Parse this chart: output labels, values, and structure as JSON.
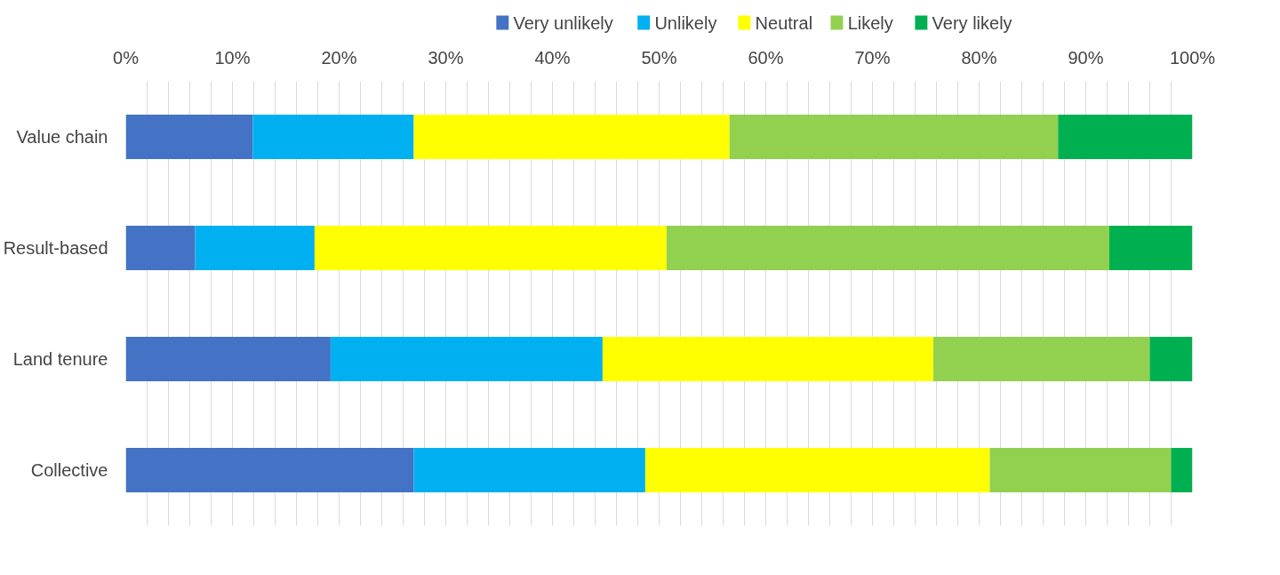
{
  "chart_data": {
    "type": "bar",
    "orientation": "horizontal",
    "stacked": true,
    "categories": [
      "Value chain",
      "Result-based",
      "Land tenure",
      "Collective"
    ],
    "series": [
      {
        "name": "Very unlikely",
        "color": "#4472c4",
        "values": [
          11.9,
          6.5,
          19.2,
          27.0
        ]
      },
      {
        "name": "Unlikely",
        "color": "#00b0f0",
        "values": [
          15.1,
          11.2,
          25.5,
          21.7
        ]
      },
      {
        "name": "Neutral",
        "color": "#ffff00",
        "values": [
          29.6,
          33.0,
          31.0,
          32.3
        ]
      },
      {
        "name": "Likely",
        "color": "#92d050",
        "values": [
          30.8,
          41.5,
          20.3,
          17.0
        ]
      },
      {
        "name": "Very likely",
        "color": "#00b050",
        "values": [
          12.6,
          7.8,
          4.0,
          2.0
        ]
      }
    ],
    "xlim": [
      0,
      100
    ],
    "xticks": [
      {
        "value": 0,
        "label": "0%"
      },
      {
        "value": 2,
        "label": null
      },
      {
        "value": 4,
        "label": null
      },
      {
        "value": 6,
        "label": null
      },
      {
        "value": 8,
        "label": null
      },
      {
        "value": 10,
        "label": "10%"
      },
      {
        "value": 12,
        "label": null
      },
      {
        "value": 14,
        "label": null
      },
      {
        "value": 16,
        "label": null
      },
      {
        "value": 18,
        "label": null
      },
      {
        "value": 20,
        "label": "20%"
      },
      {
        "value": 22,
        "label": null
      },
      {
        "value": 24,
        "label": null
      },
      {
        "value": 26,
        "label": null
      },
      {
        "value": 28,
        "label": null
      },
      {
        "value": 30,
        "label": "30%"
      },
      {
        "value": 32,
        "label": null
      },
      {
        "value": 34,
        "label": null
      },
      {
        "value": 36,
        "label": null
      },
      {
        "value": 38,
        "label": null
      },
      {
        "value": 40,
        "label": "40%"
      },
      {
        "value": 42,
        "label": null
      },
      {
        "value": 44,
        "label": null
      },
      {
        "value": 46,
        "label": null
      },
      {
        "value": 48,
        "label": null
      },
      {
        "value": 50,
        "label": "50%"
      },
      {
        "value": 52,
        "label": null
      },
      {
        "value": 54,
        "label": null
      },
      {
        "value": 56,
        "label": null
      },
      {
        "value": 58,
        "label": null
      },
      {
        "value": 60,
        "label": "60%"
      },
      {
        "value": 62,
        "label": null
      },
      {
        "value": 64,
        "label": null
      },
      {
        "value": 66,
        "label": null
      },
      {
        "value": 68,
        "label": null
      },
      {
        "value": 70,
        "label": "70%"
      },
      {
        "value": 72,
        "label": null
      },
      {
        "value": 74,
        "label": null
      },
      {
        "value": 76,
        "label": null
      },
      {
        "value": 78,
        "label": null
      },
      {
        "value": 80,
        "label": "80%"
      },
      {
        "value": 82,
        "label": null
      },
      {
        "value": 84,
        "label": null
      },
      {
        "value": 86,
        "label": null
      },
      {
        "value": 88,
        "label": null
      },
      {
        "value": 90,
        "label": "90%"
      },
      {
        "value": 92,
        "label": null
      },
      {
        "value": 94,
        "label": null
      },
      {
        "value": 96,
        "label": null
      },
      {
        "value": 98,
        "label": null
      },
      {
        "value": 100,
        "label": "100%"
      }
    ],
    "grid": "x",
    "legend": "top"
  }
}
